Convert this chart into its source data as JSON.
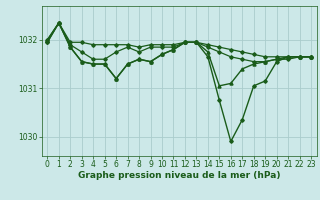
{
  "background_color": "#cce8e8",
  "grid_color": "#aacccc",
  "line_color": "#1a5c1a",
  "xlabel": "Graphe pression niveau de la mer (hPa)",
  "xlabel_fontsize": 6.5,
  "tick_fontsize": 5.5,
  "xlim": [
    -0.5,
    23.5
  ],
  "ylim": [
    1029.6,
    1032.7
  ],
  "yticks": [
    1030,
    1031,
    1032
  ],
  "xticks": [
    0,
    1,
    2,
    3,
    4,
    5,
    6,
    7,
    8,
    9,
    10,
    11,
    12,
    13,
    14,
    15,
    16,
    17,
    18,
    19,
    20,
    21,
    22,
    23
  ],
  "series": [
    {
      "x": [
        0,
        1,
        2,
        3,
        4,
        5,
        6,
        7,
        8,
        9,
        10,
        11,
        12,
        13,
        14,
        15,
        16,
        17,
        18,
        19,
        20,
        21,
        22,
        23
      ],
      "y": [
        1032.0,
        1032.35,
        1031.95,
        1031.95,
        1031.9,
        1031.9,
        1031.9,
        1031.9,
        1031.85,
        1031.9,
        1031.9,
        1031.9,
        1031.95,
        1031.95,
        1031.9,
        1031.85,
        1031.8,
        1031.75,
        1031.7,
        1031.65,
        1031.65,
        1031.65,
        1031.65,
        1031.65
      ],
      "marker": "D",
      "markersize": 1.8,
      "linewidth": 0.9
    },
    {
      "x": [
        0,
        1,
        2,
        3,
        4,
        5,
        6,
        7,
        8,
        9,
        10,
        11,
        12,
        13,
        14,
        15,
        16,
        17,
        18,
        19,
        20,
        21,
        22,
        23
      ],
      "y": [
        1031.95,
        1032.35,
        1031.9,
        1031.75,
        1031.6,
        1031.6,
        1031.75,
        1031.85,
        1031.75,
        1031.85,
        1031.85,
        1031.85,
        1031.95,
        1031.95,
        1031.85,
        1031.75,
        1031.65,
        1031.6,
        1031.55,
        1031.55,
        1031.6,
        1031.6,
        1031.65,
        1031.65
      ],
      "marker": "D",
      "markersize": 1.8,
      "linewidth": 0.9
    },
    {
      "x": [
        0,
        1,
        2,
        3,
        4,
        5,
        6,
        7,
        8,
        9,
        10,
        11,
        12,
        13,
        14,
        15,
        16,
        17,
        18,
        19,
        20,
        21,
        22,
        23
      ],
      "y": [
        1032.0,
        1032.35,
        1031.85,
        1031.55,
        1031.5,
        1031.5,
        1031.2,
        1031.5,
        1031.6,
        1031.55,
        1031.7,
        1031.8,
        1031.95,
        1031.95,
        1031.75,
        1031.05,
        1031.1,
        1031.4,
        1031.5,
        1031.55,
        1031.6,
        1031.65,
        1031.65,
        1031.65
      ],
      "marker": "^",
      "markersize": 2.2,
      "linewidth": 1.0
    },
    {
      "x": [
        0,
        1,
        2,
        3,
        4,
        5,
        6,
        7,
        8,
        9,
        10,
        11,
        12,
        13,
        14,
        15,
        16,
        17,
        18,
        19,
        20,
        21,
        22,
        23
      ],
      "y": [
        1031.95,
        1032.35,
        1031.85,
        1031.55,
        1031.5,
        1031.5,
        1031.2,
        1031.5,
        1031.6,
        1031.55,
        1031.7,
        1031.8,
        1031.95,
        1031.95,
        1031.65,
        1030.75,
        1029.9,
        1030.35,
        1031.05,
        1031.15,
        1031.55,
        1031.65,
        1031.65,
        1031.65
      ],
      "marker": "D",
      "markersize": 1.8,
      "linewidth": 1.0
    }
  ]
}
